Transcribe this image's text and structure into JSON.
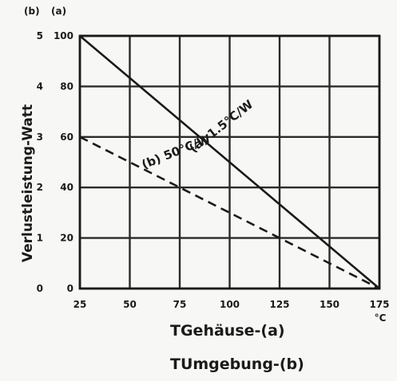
{
  "chart_data": {
    "type": "line",
    "xlabel_a": "TGehäuse-(a)",
    "xlabel_b": "TUmgebung-(b)",
    "ylabel": "Verlustleistung-Watt",
    "y_axis_headers": {
      "left": "(b)",
      "right": "(a)"
    },
    "x_unit": "°C",
    "xlim": [
      25,
      175
    ],
    "x_ticks": [
      25,
      50,
      75,
      100,
      125,
      150,
      175
    ],
    "x_tick_labels": [
      "25",
      "50",
      "75",
      "100",
      "125",
      "150",
      "175"
    ],
    "ylim_a": [
      0,
      100
    ],
    "ylim_b": [
      0,
      5
    ],
    "y_ticks_a": [
      "0",
      "20",
      "40",
      "60",
      "80",
      "100"
    ],
    "y_ticks_b": [
      "0",
      "1",
      "2",
      "3",
      "4",
      "5"
    ],
    "grid": true,
    "series": [
      {
        "name": "(a) 1.5°C/W",
        "axis": "a",
        "style": "solid",
        "color": "#1a1a1a",
        "x": [
          25,
          175
        ],
        "y": [
          100,
          0
        ]
      },
      {
        "name": "(b) 50°C/W",
        "axis": "b",
        "style": "dashed",
        "color": "#1a1a1a",
        "x": [
          25,
          175
        ],
        "y": [
          3,
          0
        ]
      }
    ]
  }
}
